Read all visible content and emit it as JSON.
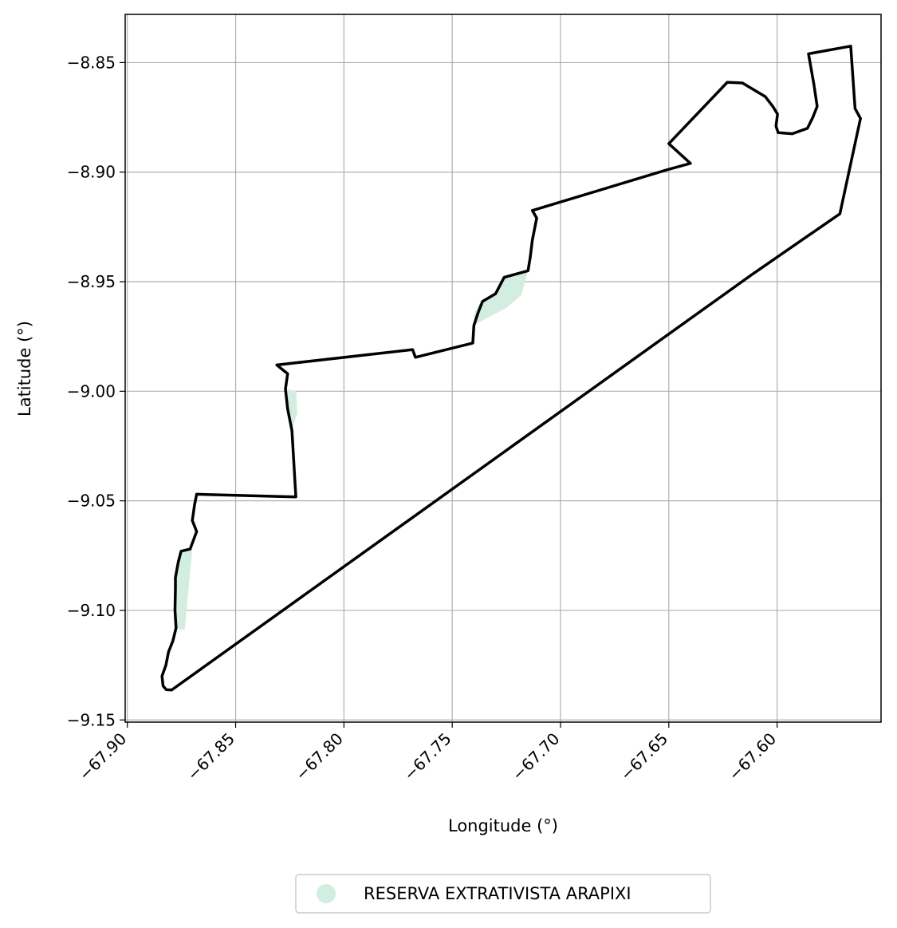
{
  "chart_data": {
    "type": "map",
    "xlabel": "Longitude (°)",
    "ylabel": "Latitude (°)",
    "xlim": [
      -67.901,
      -67.552
    ],
    "ylim": [
      -9.151,
      -8.828
    ],
    "grid": true,
    "x_ticks": [
      -67.9,
      -67.85,
      -67.8,
      -67.75,
      -67.7,
      -67.65,
      -67.6
    ],
    "x_tick_labels": [
      "−67.90",
      "−67.85",
      "−67.80",
      "−67.75",
      "−67.70",
      "−67.65",
      "−67.60"
    ],
    "y_ticks": [
      -8.85,
      -8.9,
      -8.95,
      -9.0,
      -9.05,
      -9.1,
      -9.15
    ],
    "y_tick_labels": [
      "−8.85",
      "−8.90",
      "−8.95",
      "−9.00",
      "−9.05",
      "−9.10",
      "−9.15"
    ],
    "boundary_color": "#000000",
    "fill_color": "#d3eee1",
    "legend": {
      "placement": "bottom-center",
      "entries": [
        {
          "label": "RESERVA EXTRATIVISTA ARAPIXI",
          "color": "#d3eee1",
          "marker": "circle"
        }
      ]
    },
    "boundary": [
      [
        -67.8795,
        -9.1363
      ],
      [
        -67.882,
        -9.1362
      ],
      [
        -67.8835,
        -9.1345
      ],
      [
        -67.884,
        -9.13
      ],
      [
        -67.8822,
        -9.125
      ],
      [
        -67.881,
        -9.119
      ],
      [
        -67.879,
        -9.114
      ],
      [
        -67.8775,
        -9.108
      ],
      [
        -67.878,
        -9.1
      ],
      [
        -67.8778,
        -9.09
      ],
      [
        -67.8778,
        -9.085
      ],
      [
        -67.8765,
        -9.078
      ],
      [
        -67.8752,
        -9.073
      ],
      [
        -67.871,
        -9.072
      ],
      [
        -67.868,
        -9.064
      ],
      [
        -67.87,
        -9.059
      ],
      [
        -67.869,
        -9.052
      ],
      [
        -67.868,
        -9.047
      ],
      [
        -67.8222,
        -9.0482
      ],
      [
        -67.824,
        -9.018
      ],
      [
        -67.826,
        -9.008
      ],
      [
        -67.827,
        -8.999
      ],
      [
        -67.826,
        -8.992
      ],
      [
        -67.831,
        -8.988
      ],
      [
        -67.7683,
        -8.981
      ],
      [
        -67.767,
        -8.9845
      ],
      [
        -67.7405,
        -8.978
      ],
      [
        -67.74,
        -8.97
      ],
      [
        -67.738,
        -8.964
      ],
      [
        -67.736,
        -8.959
      ],
      [
        -67.73,
        -8.9555
      ],
      [
        -67.726,
        -8.948
      ],
      [
        -67.715,
        -8.945
      ],
      [
        -67.714,
        -8.939
      ],
      [
        -67.713,
        -8.931
      ],
      [
        -67.711,
        -8.921
      ],
      [
        -67.713,
        -8.9175
      ],
      [
        -67.651,
        -8.899
      ],
      [
        -67.64,
        -8.896
      ],
      [
        -67.65,
        -8.887
      ],
      [
        -67.623,
        -8.859
      ],
      [
        -67.616,
        -8.8593
      ],
      [
        -67.6055,
        -8.8655
      ],
      [
        -67.602,
        -8.87
      ],
      [
        -67.5998,
        -8.8735
      ],
      [
        -67.6005,
        -8.879
      ],
      [
        -67.5995,
        -8.882
      ],
      [
        -67.593,
        -8.8825
      ],
      [
        -67.586,
        -8.88
      ],
      [
        -67.5835,
        -8.875
      ],
      [
        -67.5815,
        -8.87
      ],
      [
        -67.583,
        -8.86
      ],
      [
        -67.5855,
        -8.846
      ],
      [
        -67.566,
        -8.8425
      ],
      [
        -67.564,
        -8.871
      ],
      [
        -67.5615,
        -8.8755
      ],
      [
        -67.571,
        -8.919
      ],
      [
        -67.612,
        -8.947
      ],
      [
        -67.8795,
        -9.1363
      ]
    ],
    "reserve_areas": [
      [
        [
          -67.8785,
          -9.108
        ],
        [
          -67.8735,
          -9.109
        ],
        [
          -67.87,
          -9.072
        ],
        [
          -67.8745,
          -9.072
        ],
        [
          -67.877,
          -9.083
        ],
        [
          -67.8785,
          -9.1
        ]
      ],
      [
        [
          -67.827,
          -8.999
        ],
        [
          -67.822,
          -9.0
        ],
        [
          -67.8215,
          -9.01
        ],
        [
          -67.824,
          -9.018
        ],
        [
          -67.8255,
          -9.008
        ]
      ],
      [
        [
          -67.74,
          -8.97
        ],
        [
          -67.733,
          -8.966
        ],
        [
          -67.725,
          -8.962
        ],
        [
          -67.718,
          -8.956
        ],
        [
          -67.715,
          -8.945
        ],
        [
          -67.7265,
          -8.948
        ],
        [
          -67.731,
          -8.956
        ],
        [
          -67.7375,
          -8.96
        ],
        [
          -67.74,
          -8.965
        ]
      ]
    ]
  }
}
